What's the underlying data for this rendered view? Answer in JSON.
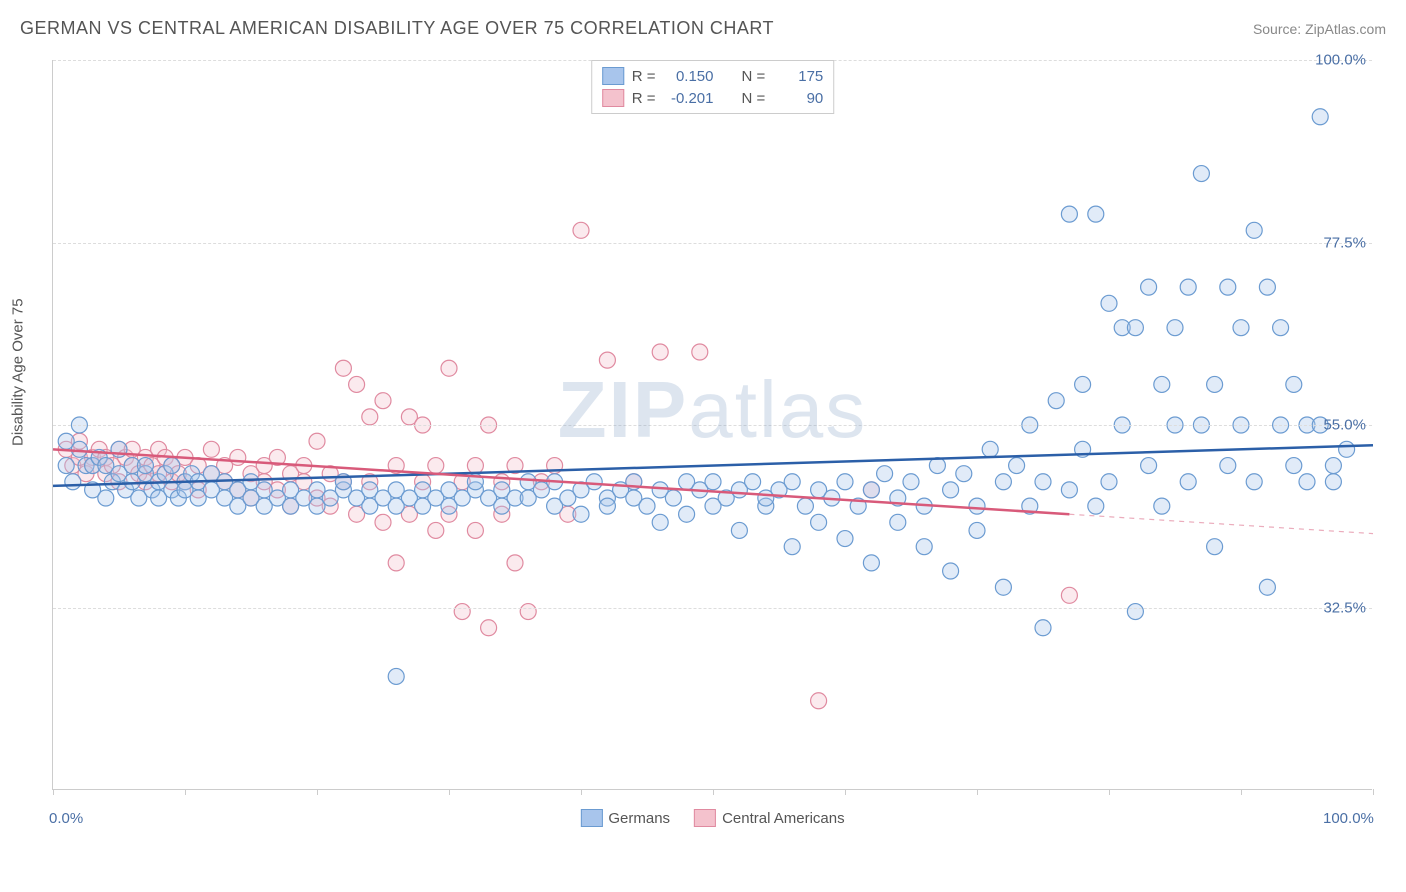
{
  "title": "GERMAN VS CENTRAL AMERICAN DISABILITY AGE OVER 75 CORRELATION CHART",
  "source_label": "Source: ZipAtlas.com",
  "watermark_a": "ZIP",
  "watermark_b": "atlas",
  "y_axis_title": "Disability Age Over 75",
  "chart": {
    "type": "scatter",
    "xlim": [
      0,
      100
    ],
    "ylim": [
      10,
      100
    ],
    "x_ticks": [
      0,
      10,
      20,
      30,
      40,
      50,
      60,
      70,
      80,
      90,
      100
    ],
    "x_labels": [
      {
        "v": 0,
        "t": "0.0%"
      },
      {
        "v": 100,
        "t": "100.0%"
      }
    ],
    "y_gridlines": [
      32.5,
      55.0,
      77.5,
      100.0
    ],
    "y_labels": [
      {
        "v": 32.5,
        "t": "32.5%"
      },
      {
        "v": 55.0,
        "t": "55.0%"
      },
      {
        "v": 77.5,
        "t": "77.5%"
      },
      {
        "v": 100.0,
        "t": "100.0%"
      }
    ],
    "background_color": "#ffffff",
    "grid_color": "#dddddd",
    "axis_color": "#cccccc",
    "marker_radius": 8,
    "marker_stroke_width": 1.2,
    "marker_fill_opacity": 0.35,
    "series": [
      {
        "id": "germans",
        "label": "Germans",
        "color_fill": "#a8c5ec",
        "color_stroke": "#6b9bd1",
        "line_color": "#2b5fa8",
        "line_width": 2.5,
        "r_value": "0.150",
        "n_value": "175",
        "trend": {
          "x1": 0,
          "y1": 47.5,
          "x2": 100,
          "y2": 52.5,
          "extrap_from": 100
        },
        "points": [
          [
            1,
            53
          ],
          [
            1,
            50
          ],
          [
            1.5,
            48
          ],
          [
            2,
            55
          ],
          [
            2,
            52
          ],
          [
            2.5,
            50
          ],
          [
            3,
            50
          ],
          [
            3,
            47
          ],
          [
            3.5,
            51
          ],
          [
            4,
            50
          ],
          [
            4,
            46
          ],
          [
            4.5,
            48
          ],
          [
            5,
            49
          ],
          [
            5,
            52
          ],
          [
            5.5,
            47
          ],
          [
            6,
            48
          ],
          [
            6,
            50
          ],
          [
            6.5,
            46
          ],
          [
            7,
            49
          ],
          [
            7,
            50
          ],
          [
            7.5,
            47
          ],
          [
            8,
            48
          ],
          [
            8,
            46
          ],
          [
            8.5,
            49
          ],
          [
            9,
            47
          ],
          [
            9,
            50
          ],
          [
            9.5,
            46
          ],
          [
            10,
            48
          ],
          [
            10,
            47
          ],
          [
            10.5,
            49
          ],
          [
            11,
            46
          ],
          [
            11,
            48
          ],
          [
            12,
            47
          ],
          [
            12,
            49
          ],
          [
            13,
            46
          ],
          [
            13,
            48
          ],
          [
            14,
            47
          ],
          [
            14,
            45
          ],
          [
            15,
            46
          ],
          [
            15,
            48
          ],
          [
            16,
            47
          ],
          [
            16,
            45
          ],
          [
            17,
            46
          ],
          [
            18,
            47
          ],
          [
            18,
            45
          ],
          [
            19,
            46
          ],
          [
            20,
            47
          ],
          [
            20,
            45
          ],
          [
            21,
            46
          ],
          [
            22,
            47
          ],
          [
            22,
            48
          ],
          [
            23,
            46
          ],
          [
            24,
            45
          ],
          [
            24,
            47
          ],
          [
            25,
            46
          ],
          [
            26,
            45
          ],
          [
            26,
            47
          ],
          [
            27,
            46
          ],
          [
            28,
            45
          ],
          [
            28,
            47
          ],
          [
            29,
            46
          ],
          [
            30,
            47
          ],
          [
            30,
            45
          ],
          [
            31,
            46
          ],
          [
            32,
            47
          ],
          [
            32,
            48
          ],
          [
            33,
            46
          ],
          [
            34,
            45
          ],
          [
            34,
            47
          ],
          [
            35,
            46
          ],
          [
            36,
            48
          ],
          [
            36,
            46
          ],
          [
            37,
            47
          ],
          [
            38,
            45
          ],
          [
            38,
            48
          ],
          [
            39,
            46
          ],
          [
            40,
            47
          ],
          [
            40,
            44
          ],
          [
            41,
            48
          ],
          [
            42,
            46
          ],
          [
            42,
            45
          ],
          [
            43,
            47
          ],
          [
            44,
            46
          ],
          [
            44,
            48
          ],
          [
            45,
            45
          ],
          [
            46,
            47
          ],
          [
            46,
            43
          ],
          [
            47,
            46
          ],
          [
            48,
            48
          ],
          [
            48,
            44
          ],
          [
            49,
            47
          ],
          [
            50,
            45
          ],
          [
            50,
            48
          ],
          [
            51,
            46
          ],
          [
            52,
            47
          ],
          [
            52,
            42
          ],
          [
            53,
            48
          ],
          [
            54,
            45
          ],
          [
            54,
            46
          ],
          [
            55,
            47
          ],
          [
            56,
            48
          ],
          [
            56,
            40
          ],
          [
            57,
            45
          ],
          [
            58,
            47
          ],
          [
            58,
            43
          ],
          [
            59,
            46
          ],
          [
            60,
            48
          ],
          [
            60,
            41
          ],
          [
            61,
            45
          ],
          [
            62,
            47
          ],
          [
            62,
            38
          ],
          [
            63,
            49
          ],
          [
            64,
            46
          ],
          [
            64,
            43
          ],
          [
            65,
            48
          ],
          [
            66,
            45
          ],
          [
            66,
            40
          ],
          [
            67,
            50
          ],
          [
            68,
            47
          ],
          [
            68,
            37
          ],
          [
            69,
            49
          ],
          [
            70,
            45
          ],
          [
            70,
            42
          ],
          [
            71,
            52
          ],
          [
            72,
            48
          ],
          [
            72,
            35
          ],
          [
            73,
            50
          ],
          [
            74,
            45
          ],
          [
            74,
            55
          ],
          [
            75,
            48
          ],
          [
            75,
            30
          ],
          [
            76,
            58
          ],
          [
            77,
            47
          ],
          [
            77,
            81
          ],
          [
            78,
            52
          ],
          [
            78,
            60
          ],
          [
            79,
            45
          ],
          [
            79,
            81
          ],
          [
            80,
            48
          ],
          [
            80,
            70
          ],
          [
            81,
            55
          ],
          [
            81,
            67
          ],
          [
            82,
            32
          ],
          [
            82,
            67
          ],
          [
            83,
            50
          ],
          [
            83,
            72
          ],
          [
            84,
            60
          ],
          [
            84,
            45
          ],
          [
            85,
            55
          ],
          [
            85,
            67
          ],
          [
            86,
            72
          ],
          [
            86,
            48
          ],
          [
            87,
            55
          ],
          [
            87,
            86
          ],
          [
            88,
            60
          ],
          [
            88,
            40
          ],
          [
            89,
            50
          ],
          [
            89,
            72
          ],
          [
            90,
            55
          ],
          [
            90,
            67
          ],
          [
            91,
            48
          ],
          [
            91,
            79
          ],
          [
            92,
            72
          ],
          [
            92,
            35
          ],
          [
            93,
            55
          ],
          [
            93,
            67
          ],
          [
            94,
            50
          ],
          [
            94,
            60
          ],
          [
            95,
            48
          ],
          [
            95,
            55
          ],
          [
            96,
            93
          ],
          [
            96,
            55
          ],
          [
            97,
            48
          ],
          [
            97,
            50
          ],
          [
            98,
            52
          ],
          [
            26,
            24
          ]
        ]
      },
      {
        "id": "central_americans",
        "label": "Central Americans",
        "color_fill": "#f4c2cd",
        "color_stroke": "#e08aa0",
        "line_color": "#d85a7a",
        "line_width": 2.5,
        "r_value": "-0.201",
        "n_value": "90",
        "trend": {
          "x1": 0,
          "y1": 52,
          "x2": 77,
          "y2": 44,
          "extrap_from": 77
        },
        "points": [
          [
            1,
            52
          ],
          [
            1.5,
            50
          ],
          [
            2,
            51
          ],
          [
            2,
            53
          ],
          [
            2.5,
            49
          ],
          [
            3,
            51
          ],
          [
            3,
            50
          ],
          [
            3.5,
            52
          ],
          [
            4,
            49
          ],
          [
            4,
            51
          ],
          [
            4.5,
            50
          ],
          [
            5,
            52
          ],
          [
            5,
            48
          ],
          [
            5.5,
            51
          ],
          [
            6,
            50
          ],
          [
            6,
            52
          ],
          [
            6.5,
            49
          ],
          [
            7,
            51
          ],
          [
            7,
            48
          ],
          [
            7.5,
            50
          ],
          [
            8,
            52
          ],
          [
            8,
            49
          ],
          [
            8.5,
            51
          ],
          [
            9,
            48
          ],
          [
            9,
            50
          ],
          [
            9.5,
            49
          ],
          [
            10,
            51
          ],
          [
            10,
            48
          ],
          [
            11,
            50
          ],
          [
            11,
            47
          ],
          [
            12,
            49
          ],
          [
            12,
            52
          ],
          [
            13,
            48
          ],
          [
            13,
            50
          ],
          [
            14,
            47
          ],
          [
            14,
            51
          ],
          [
            15,
            49
          ],
          [
            15,
            46
          ],
          [
            16,
            50
          ],
          [
            16,
            48
          ],
          [
            17,
            47
          ],
          [
            17,
            51
          ],
          [
            18,
            49
          ],
          [
            18,
            45
          ],
          [
            19,
            50
          ],
          [
            19,
            48
          ],
          [
            20,
            46
          ],
          [
            20,
            53
          ],
          [
            21,
            49
          ],
          [
            21,
            45
          ],
          [
            22,
            48
          ],
          [
            22,
            62
          ],
          [
            23,
            60
          ],
          [
            23,
            44
          ],
          [
            24,
            56
          ],
          [
            24,
            48
          ],
          [
            25,
            43
          ],
          [
            25,
            58
          ],
          [
            26,
            50
          ],
          [
            26,
            38
          ],
          [
            27,
            56
          ],
          [
            27,
            44
          ],
          [
            28,
            48
          ],
          [
            28,
            55
          ],
          [
            29,
            42
          ],
          [
            29,
            50
          ],
          [
            30,
            62
          ],
          [
            30,
            44
          ],
          [
            31,
            48
          ],
          [
            31,
            32
          ],
          [
            32,
            50
          ],
          [
            32,
            42
          ],
          [
            33,
            55
          ],
          [
            33,
            30
          ],
          [
            34,
            48
          ],
          [
            34,
            44
          ],
          [
            35,
            50
          ],
          [
            35,
            38
          ],
          [
            36,
            32
          ],
          [
            37,
            48
          ],
          [
            38,
            50
          ],
          [
            39,
            44
          ],
          [
            40,
            79
          ],
          [
            42,
            63
          ],
          [
            44,
            48
          ],
          [
            46,
            64
          ],
          [
            49,
            64
          ],
          [
            58,
            21
          ],
          [
            62,
            47
          ],
          [
            77,
            34
          ]
        ]
      }
    ],
    "legend_top": {
      "r_label": "R =",
      "n_label": "N ="
    }
  }
}
